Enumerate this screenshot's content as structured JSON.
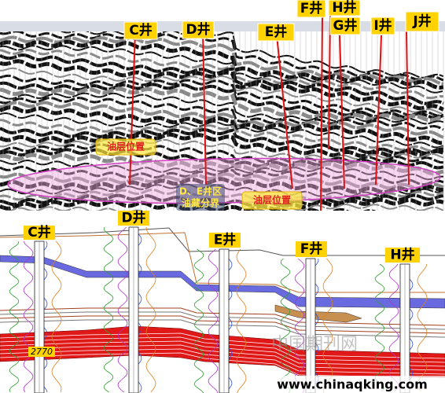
{
  "seismic_section": {
    "wells": [
      "C井",
      "D井",
      "E井",
      "F井",
      "H井",
      "G井",
      "I井",
      "J井"
    ],
    "annotations": {
      "oil_layer_left": "油层位置",
      "boundary": [
        "D、E井区",
        "油藏分界"
      ],
      "oil_layer_right": "油层位置"
    }
  },
  "well_correlation": {
    "wells": [
      "C井",
      "D井",
      "E井",
      "F井",
      "H井"
    ],
    "depth_label": "2770"
  },
  "watermark": {
    "cn": "中国期刊网",
    "url": "www.chinaqking.com"
  }
}
